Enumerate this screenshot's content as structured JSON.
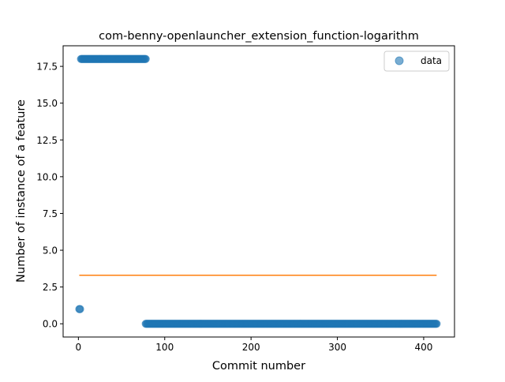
{
  "chart_data": {
    "type": "scatter",
    "title": "com-benny-openlauncher_extension_function-logarithm",
    "xlabel": "Commit number",
    "ylabel": "Number of instance of a feature",
    "xlim": [
      -17.7,
      435.7
    ],
    "ylim": [
      -0.9,
      18.9
    ],
    "xticks": [
      0,
      100,
      200,
      300,
      400
    ],
    "yticks": [
      0.0,
      2.5,
      5.0,
      7.5,
      10.0,
      12.5,
      15.0,
      17.5
    ],
    "xtick_labels": [
      "0",
      "100",
      "200",
      "300",
      "400"
    ],
    "ytick_labels": [
      "0.0",
      "2.5",
      "5.0",
      "7.5",
      "10.0",
      "12.5",
      "15.0",
      "17.5"
    ],
    "grid": false,
    "legend_position": "top-right",
    "series": [
      {
        "name": "data",
        "kind": "scatter",
        "color": "#1f77b4",
        "alpha": 0.6,
        "segments": [
          {
            "x_start": 1,
            "x_end": 2,
            "y": 1
          },
          {
            "x_start": 3,
            "x_end": 78,
            "y": 18
          },
          {
            "x_start": 78,
            "x_end": 415,
            "y": 0
          }
        ]
      },
      {
        "kind": "line",
        "color": "#ff7f0e",
        "x": [
          1,
          415
        ],
        "y": [
          3.3,
          3.3
        ]
      }
    ]
  }
}
